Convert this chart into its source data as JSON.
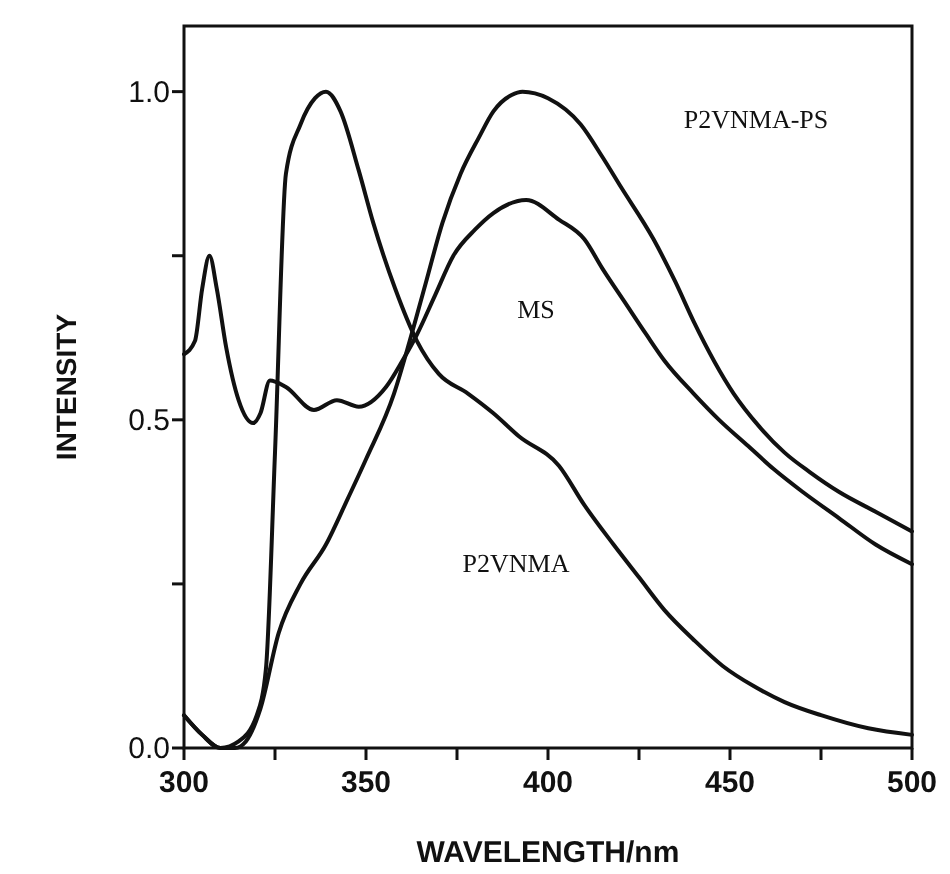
{
  "chart_data": {
    "type": "line",
    "xlabel": "WAVELENGTH/nm",
    "ylabel": "INTENSITY",
    "xlim": [
      300,
      500
    ],
    "ylim": [
      0,
      1.1
    ],
    "xticks": [
      300,
      {
        "value": 325,
        "label": null
      },
      350,
      {
        "value": 375,
        "label": null
      },
      400,
      {
        "value": 425,
        "label": null
      },
      450,
      {
        "value": 475,
        "label": null
      },
      500
    ],
    "yticks": [
      {
        "value": 0,
        "label": "0.0"
      },
      {
        "value": 0.25,
        "label": null
      },
      {
        "value": 0.5,
        "label": "0.5"
      },
      {
        "value": 0.75,
        "label": null
      },
      {
        "value": 1,
        "label": "1.0"
      }
    ],
    "grid": false,
    "marker": "none",
    "line_style": "solid",
    "series": [
      {
        "color": "#111111",
        "x": [
          300,
          305,
          310,
          315,
          320,
          322.5,
          325,
          328,
          332,
          336,
          339,
          343,
          348,
          352,
          358,
          364,
          370,
          378,
          385,
          392,
          403,
          410,
          418,
          425,
          432,
          440,
          448,
          456.6,
          465,
          475,
          488,
          500
        ],
        "values": [
          0.05,
          0.02,
          0.0,
          0.01,
          0.05,
          0.12,
          0.45,
          0.875,
          0.95,
          0.99,
          1.0,
          0.97,
          0.88,
          0.8,
          0.7,
          0.62,
          0.57,
          0.54,
          0.51,
          0.475,
          0.43,
          0.37,
          0.31,
          0.26,
          0.21,
          0.165,
          0.125,
          0.094,
          0.07,
          0.05,
          0.03,
          0.02
        ]
      },
      {
        "color": "#111111",
        "x": [
          300,
          303,
          305,
          307,
          309,
          311.6,
          315,
          319,
          321,
          323.6,
          328,
          335.7,
          342,
          348,
          355.5,
          360,
          364,
          369,
          374,
          380,
          385,
          394,
          403,
          410,
          415,
          421,
          427,
          432,
          440,
          447,
          455,
          462,
          470,
          480,
          490,
          500
        ],
        "values": [
          0.6,
          0.62,
          0.7,
          0.75,
          0.7,
          0.61,
          0.53,
          0.495,
          0.51,
          0.56,
          0.55,
          0.515,
          0.53,
          0.52,
          0.55,
          0.59,
          0.63,
          0.69,
          0.75,
          0.79,
          0.815,
          0.835,
          0.805,
          0.775,
          0.73,
          0.68,
          0.63,
          0.59,
          0.54,
          0.5,
          0.46,
          0.425,
          0.39,
          0.35,
          0.31,
          0.28
        ]
      },
      {
        "color": "#111111",
        "x": [
          300,
          305,
          310,
          314,
          317,
          321,
          326,
          332,
          339,
          345,
          350,
          357.7,
          362,
          366.5,
          371,
          376,
          381,
          385,
          390,
          393,
          400,
          409,
          415,
          420,
          429,
          435,
          440,
          451,
          458,
          465,
          472,
          480,
          490,
          500
        ],
        "values": [
          0.05,
          0.02,
          0.0,
          0.0,
          0.01,
          0.06,
          0.175,
          0.25,
          0.31,
          0.38,
          0.44,
          0.54,
          0.62,
          0.71,
          0.8,
          0.875,
          0.93,
          0.97,
          0.995,
          1.0,
          0.99,
          0.95,
          0.9,
          0.855,
          0.775,
          0.71,
          0.65,
          0.54,
          0.49,
          0.45,
          0.42,
          0.39,
          0.36,
          0.33
        ]
      }
    ],
    "annotations": [
      "P2VNMA",
      "MS",
      "P2VNMA-PS"
    ]
  }
}
